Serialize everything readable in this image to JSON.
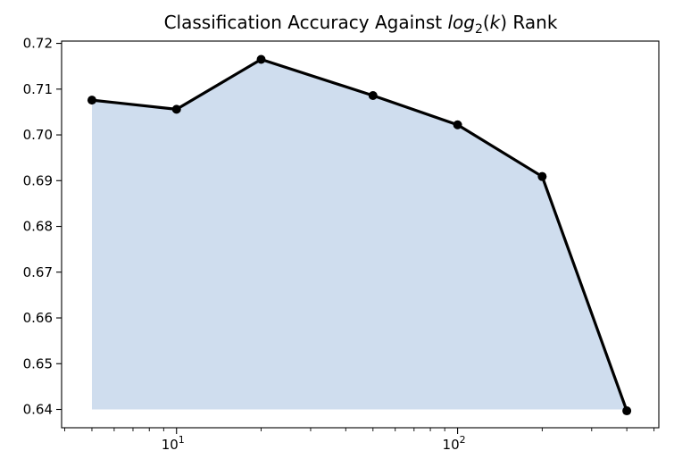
{
  "chart_data": {
    "type": "line",
    "title_parts": {
      "before": "Classification Accuracy Against ",
      "log": "log",
      "sub": "2",
      "open_paren": "(",
      "k": "k",
      "close_paren": ") Rank"
    },
    "xscale": "log",
    "xlim": [
      3.9,
      520
    ],
    "ylim": [
      0.636,
      0.7205
    ],
    "grid": false,
    "area_fill": "#cfddee",
    "line_color": "#000000",
    "yticks": [
      0.64,
      0.65,
      0.66,
      0.67,
      0.68,
      0.69,
      0.7,
      0.71,
      0.72
    ],
    "ytick_labels": [
      "0.64",
      "0.65",
      "0.66",
      "0.67",
      "0.68",
      "0.69",
      "0.70",
      "0.71",
      "0.72"
    ],
    "xticks_major": [
      {
        "value": 10,
        "base": "10",
        "exp": "1"
      },
      {
        "value": 100,
        "base": "10",
        "exp": "2"
      }
    ],
    "xticks_minor": [
      4,
      5,
      6,
      7,
      8,
      9,
      20,
      30,
      40,
      50,
      60,
      70,
      80,
      90,
      200,
      300,
      400,
      500
    ],
    "series": [
      {
        "x": [
          5,
          10,
          20,
          50,
          100,
          200,
          400
        ],
        "y": [
          0.7076,
          0.7056,
          0.7165,
          0.7086,
          0.7022,
          0.6909,
          0.6397
        ]
      }
    ]
  }
}
